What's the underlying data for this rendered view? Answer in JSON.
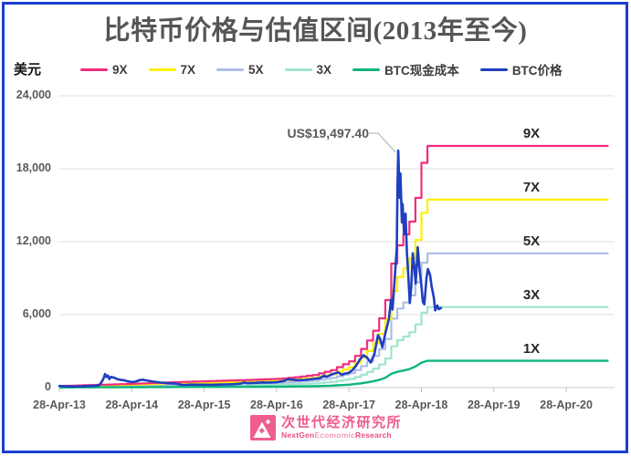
{
  "title": "比特币价格与估值区间(2013年至今)",
  "y_axis_unit": "美元",
  "legend": {
    "items": [
      {
        "label": "9X",
        "color": "#F02D7D"
      },
      {
        "label": "7X",
        "color": "#FDF000"
      },
      {
        "label": "5X",
        "color": "#ADBDE9"
      },
      {
        "label": "3X",
        "color": "#9FE5CE"
      },
      {
        "label": "BTC现金成本",
        "color": "#0CB57E"
      },
      {
        "label": "BTC价格",
        "color": "#1F3FBF"
      }
    ]
  },
  "footer": {
    "brand_cn": "次世代经济研究所",
    "en_segments": [
      {
        "text": "NextGen",
        "color": "#E94E82"
      },
      {
        "text": "Ecomomic",
        "color": "#F29BBD"
      },
      {
        "text": "Research",
        "color": "#E94E82"
      }
    ],
    "logo_color": "#EF5E8F"
  },
  "chart_data": {
    "type": "line",
    "title": "比特币价格与估值区间(2013年至今)",
    "ylabel": "美元",
    "ylim": [
      0,
      24000
    ],
    "grid": "horizontal",
    "x_unit": "years since 28-Apr-2013",
    "x_max": 7.66,
    "y_ticks": [
      {
        "v": 0,
        "label": "0"
      },
      {
        "v": 6000,
        "label": "6,000"
      },
      {
        "v": 12000,
        "label": "12,000"
      },
      {
        "v": 18000,
        "label": "18,000"
      },
      {
        "v": 24000,
        "label": "24,000"
      }
    ],
    "x_ticks": [
      {
        "t": 0,
        "label": "28-Apr-13"
      },
      {
        "t": 1,
        "label": "28-Apr-14"
      },
      {
        "t": 2,
        "label": "28-Apr-15"
      },
      {
        "t": 3,
        "label": "28-Apr-16"
      },
      {
        "t": 4,
        "label": "28-Apr-17"
      },
      {
        "t": 5,
        "label": "28-Apr-18"
      },
      {
        "t": 6,
        "label": "28-Apr-19"
      },
      {
        "t": 7,
        "label": "28-Apr-20"
      }
    ],
    "cost_basis": {
      "name": "BTC现金成本",
      "color": "#0CB57E",
      "points": [
        [
          0,
          15
        ],
        [
          0.5,
          25
        ],
        [
          1,
          35
        ],
        [
          1.5,
          48
        ],
        [
          2,
          58
        ],
        [
          2.5,
          68
        ],
        [
          3,
          80
        ],
        [
          3.25,
          95
        ],
        [
          3.5,
          115
        ],
        [
          3.75,
          160
        ],
        [
          4,
          240
        ],
        [
          4.1,
          300
        ],
        [
          4.2,
          380
        ],
        [
          4.3,
          480
        ],
        [
          4.4,
          600
        ],
        [
          4.5,
          800
        ],
        [
          4.6,
          1200
        ],
        [
          4.7,
          1350
        ],
        [
          4.8,
          1450
        ],
        [
          4.85,
          1550
        ],
        [
          4.9,
          1650
        ],
        [
          4.95,
          1900
        ],
        [
          5.05,
          2208
        ],
        [
          7.66,
          2208
        ]
      ]
    },
    "bands": [
      {
        "name": "3X",
        "multiplier": 3,
        "color": "#9FE5CE"
      },
      {
        "name": "5X",
        "multiplier": 5,
        "color": "#ADBDE9"
      },
      {
        "name": "7X",
        "multiplier": 7,
        "color": "#FDF000"
      },
      {
        "name": "9X",
        "multiplier": 9,
        "color": "#F02D7D"
      }
    ],
    "btc_price": {
      "name": "BTC价格",
      "color": "#1F3FBF",
      "points": [
        [
          0,
          135
        ],
        [
          0.05,
          120
        ],
        [
          0.1,
          100
        ],
        [
          0.15,
          95
        ],
        [
          0.2,
          80
        ],
        [
          0.25,
          95
        ],
        [
          0.3,
          105
        ],
        [
          0.35,
          120
        ],
        [
          0.4,
          130
        ],
        [
          0.45,
          140
        ],
        [
          0.5,
          140
        ],
        [
          0.55,
          210
        ],
        [
          0.58,
          420
        ],
        [
          0.61,
          750
        ],
        [
          0.63,
          1120
        ],
        [
          0.65,
          880
        ],
        [
          0.67,
          1000
        ],
        [
          0.69,
          700
        ],
        [
          0.71,
          880
        ],
        [
          0.75,
          830
        ],
        [
          0.8,
          700
        ],
        [
          0.85,
          630
        ],
        [
          0.9,
          590
        ],
        [
          0.95,
          510
        ],
        [
          1,
          460
        ],
        [
          1.05,
          490
        ],
        [
          1.1,
          600
        ],
        [
          1.15,
          650
        ],
        [
          1.2,
          590
        ],
        [
          1.3,
          490
        ],
        [
          1.4,
          410
        ],
        [
          1.5,
          360
        ],
        [
          1.6,
          330
        ],
        [
          1.65,
          280
        ],
        [
          1.7,
          225
        ],
        [
          1.75,
          215
        ],
        [
          1.8,
          250
        ],
        [
          1.9,
          240
        ],
        [
          2,
          240
        ],
        [
          2.1,
          235
        ],
        [
          2.2,
          245
        ],
        [
          2.3,
          265
        ],
        [
          2.4,
          275
        ],
        [
          2.5,
          320
        ],
        [
          2.55,
          430
        ],
        [
          2.6,
          370
        ],
        [
          2.7,
          390
        ],
        [
          2.8,
          425
        ],
        [
          2.9,
          420
        ],
        [
          3,
          445
        ],
        [
          3.1,
          540
        ],
        [
          3.15,
          690
        ],
        [
          3.2,
          660
        ],
        [
          3.3,
          610
        ],
        [
          3.4,
          640
        ],
        [
          3.5,
          710
        ],
        [
          3.6,
          780
        ],
        [
          3.65,
          970
        ],
        [
          3.7,
          900
        ],
        [
          3.75,
          1060
        ],
        [
          3.8,
          1160
        ],
        [
          3.85,
          1260
        ],
        [
          3.9,
          1060
        ],
        [
          3.95,
          1160
        ],
        [
          4,
          1220
        ],
        [
          4.05,
          1460
        ],
        [
          4.1,
          1810
        ],
        [
          4.15,
          2320
        ],
        [
          4.2,
          2660
        ],
        [
          4.25,
          2460
        ],
        [
          4.3,
          2060
        ],
        [
          4.35,
          2760
        ],
        [
          4.4,
          4320
        ],
        [
          4.43,
          4000
        ],
        [
          4.46,
          3320
        ],
        [
          4.5,
          4400
        ],
        [
          4.55,
          5620
        ],
        [
          4.58,
          7220
        ],
        [
          4.6,
          6420
        ],
        [
          4.62,
          8020
        ],
        [
          4.64,
          9820
        ],
        [
          4.66,
          11500
        ],
        [
          4.67,
          16600
        ],
        [
          4.68,
          19497
        ],
        [
          4.7,
          15600
        ],
        [
          4.71,
          17600
        ],
        [
          4.73,
          13600
        ],
        [
          4.74,
          15100
        ],
        [
          4.76,
          12600
        ],
        [
          4.78,
          14300
        ],
        [
          4.8,
          11100
        ],
        [
          4.82,
          9100
        ],
        [
          4.84,
          6950
        ],
        [
          4.86,
          8350
        ],
        [
          4.88,
          11050
        ],
        [
          4.9,
          10050
        ],
        [
          4.92,
          8550
        ],
        [
          4.95,
          11550
        ],
        [
          4.97,
          9950
        ],
        [
          5,
          8350
        ],
        [
          5.02,
          7050
        ],
        [
          5.04,
          6850
        ],
        [
          5.07,
          9050
        ],
        [
          5.09,
          9750
        ],
        [
          5.12,
          9250
        ],
        [
          5.14,
          8350
        ],
        [
          5.17,
          7450
        ],
        [
          5.19,
          6350
        ],
        [
          5.22,
          6750
        ],
        [
          5.24,
          6450
        ],
        [
          5.27,
          6550
        ]
      ]
    },
    "right_labels": [
      {
        "label": "9X",
        "value": 19872
      },
      {
        "label": "7X",
        "value": 15456
      },
      {
        "label": "5X",
        "value": 11040
      },
      {
        "label": "3X",
        "value": 6624
      },
      {
        "label": "1X",
        "value": 2208
      }
    ],
    "annotation": {
      "text": "US$19,497.40",
      "t": 4.68,
      "value": 19497.4
    }
  }
}
